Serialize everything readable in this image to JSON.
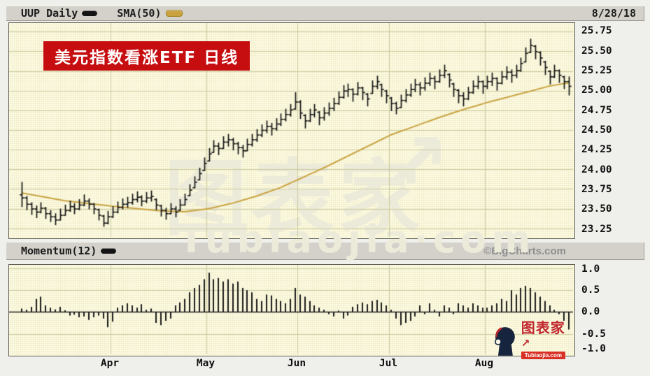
{
  "header": {
    "symbol_label": "UUP Daily",
    "sma_label": "SMA(50)",
    "date": "8/28/18"
  },
  "momentum_header": {
    "label": "Momentum(12)",
    "copyright": "©BigCharts.com"
  },
  "overlay": {
    "banner_text": "美元指数看涨ETF  日线",
    "watermark_cjk": "图表家",
    "watermark_arrow": "↗",
    "watermark_latin": "Tubiaojia·com",
    "logo_title": "图表家",
    "logo_arrow": "↗",
    "logo_sub": "Tubiaojia.com"
  },
  "colors": {
    "grid": "#c9c99a",
    "bar": "#141414",
    "sma": "#c9a23f",
    "zero_line": "#1a1a1a",
    "panel_bg": "#fdfbe2"
  },
  "chart_data": [
    {
      "type": "ohlc_bar",
      "title": "UUP Daily with SMA(50)",
      "ylim": [
        23.14,
        25.86
      ],
      "ytick_labels": [
        "25.75",
        "25.50",
        "25.25",
        "25.00",
        "24.75",
        "24.50",
        "24.25",
        "24.00",
        "23.75",
        "23.50",
        "23.25"
      ],
      "ytick_values": [
        25.75,
        25.5,
        25.25,
        25.0,
        24.75,
        24.5,
        24.25,
        24.0,
        23.75,
        23.5,
        23.25
      ],
      "month_labels": [
        "Apr",
        "May",
        "Jun",
        "Jul",
        "Aug"
      ],
      "month_boundaries": [
        19,
        39,
        58,
        77,
        97
      ],
      "bars": [
        [
          23.84,
          23.52,
          23.64
        ],
        [
          23.66,
          23.48,
          23.56
        ],
        [
          23.58,
          23.42,
          23.5
        ],
        [
          23.54,
          23.38,
          23.46
        ],
        [
          23.58,
          23.44,
          23.51
        ],
        [
          23.52,
          23.37,
          23.44
        ],
        [
          23.48,
          23.33,
          23.4
        ],
        [
          23.44,
          23.29,
          23.36
        ],
        [
          23.5,
          23.35,
          23.42
        ],
        [
          23.55,
          23.41,
          23.48
        ],
        [
          23.6,
          23.46,
          23.53
        ],
        [
          23.57,
          23.43,
          23.5
        ],
        [
          23.62,
          23.48,
          23.55
        ],
        [
          23.68,
          23.53,
          23.6
        ],
        [
          23.63,
          23.49,
          23.56
        ],
        [
          23.57,
          23.43,
          23.5
        ],
        [
          23.5,
          23.35,
          23.42
        ],
        [
          23.42,
          23.27,
          23.32
        ],
        [
          23.47,
          23.3,
          23.4
        ],
        [
          23.53,
          23.38,
          23.46
        ],
        [
          23.59,
          23.44,
          23.52
        ],
        [
          23.63,
          23.49,
          23.56
        ],
        [
          23.65,
          23.51,
          23.58
        ],
        [
          23.69,
          23.55,
          23.62
        ],
        [
          23.72,
          23.58,
          23.65
        ],
        [
          23.67,
          23.53,
          23.6
        ],
        [
          23.71,
          23.57,
          23.64
        ],
        [
          23.73,
          23.59,
          23.66
        ],
        [
          23.63,
          23.48,
          23.55
        ],
        [
          23.55,
          23.4,
          23.48
        ],
        [
          23.51,
          23.36,
          23.44
        ],
        [
          23.57,
          23.43,
          23.5
        ],
        [
          23.53,
          23.39,
          23.46
        ],
        [
          23.62,
          23.47,
          23.55
        ],
        [
          23.69,
          23.54,
          23.62
        ],
        [
          23.81,
          23.66,
          23.74
        ],
        [
          23.91,
          23.76,
          23.84
        ],
        [
          24.02,
          23.86,
          23.95
        ],
        [
          24.15,
          23.98,
          24.08
        ],
        [
          24.27,
          24.1,
          24.2
        ],
        [
          24.37,
          24.21,
          24.3
        ],
        [
          24.34,
          24.18,
          24.27
        ],
        [
          24.42,
          24.26,
          24.35
        ],
        [
          24.45,
          24.29,
          24.38
        ],
        [
          24.4,
          24.24,
          24.33
        ],
        [
          24.35,
          24.19,
          24.28
        ],
        [
          24.31,
          24.15,
          24.24
        ],
        [
          24.39,
          24.23,
          24.32
        ],
        [
          24.45,
          24.29,
          24.38
        ],
        [
          24.51,
          24.35,
          24.44
        ],
        [
          24.57,
          24.41,
          24.5
        ],
        [
          24.62,
          24.46,
          24.55
        ],
        [
          24.59,
          24.43,
          24.52
        ],
        [
          24.65,
          24.49,
          24.58
        ],
        [
          24.71,
          24.55,
          24.64
        ],
        [
          24.77,
          24.61,
          24.7
        ],
        [
          24.83,
          24.67,
          24.76
        ],
        [
          24.98,
          24.76,
          24.86
        ],
        [
          24.88,
          24.64,
          24.72
        ],
        [
          24.7,
          24.52,
          24.62
        ],
        [
          24.77,
          24.6,
          24.7
        ],
        [
          24.83,
          24.66,
          24.76
        ],
        [
          24.74,
          24.56,
          24.66
        ],
        [
          24.79,
          24.62,
          24.72
        ],
        [
          24.85,
          24.68,
          24.78
        ],
        [
          24.91,
          24.74,
          24.84
        ],
        [
          24.99,
          24.82,
          24.92
        ],
        [
          25.07,
          24.9,
          25.0
        ],
        [
          25.09,
          24.92,
          25.02
        ],
        [
          25.03,
          24.86,
          24.96
        ],
        [
          25.11,
          24.94,
          25.04
        ],
        [
          25.05,
          24.88,
          24.98
        ],
        [
          24.97,
          24.8,
          24.9
        ],
        [
          25.13,
          24.96,
          25.06
        ],
        [
          25.19,
          25.02,
          25.12
        ],
        [
          25.09,
          24.92,
          25.02
        ],
        [
          25.01,
          24.84,
          24.94
        ],
        [
          24.92,
          24.74,
          24.84
        ],
        [
          24.86,
          24.7,
          24.78
        ],
        [
          24.95,
          24.78,
          24.88
        ],
        [
          25.02,
          24.85,
          24.95
        ],
        [
          25.09,
          24.92,
          25.02
        ],
        [
          25.15,
          24.98,
          25.08
        ],
        [
          25.11,
          24.94,
          25.04
        ],
        [
          25.17,
          25.0,
          25.1
        ],
        [
          25.23,
          25.06,
          25.16
        ],
        [
          25.19,
          25.02,
          25.12
        ],
        [
          25.27,
          25.1,
          25.2
        ],
        [
          25.33,
          25.16,
          25.26
        ],
        [
          25.22,
          25.04,
          25.14
        ],
        [
          25.1,
          24.92,
          25.02
        ],
        [
          25.02,
          24.84,
          24.94
        ],
        [
          24.98,
          24.8,
          24.9
        ],
        [
          25.05,
          24.88,
          24.98
        ],
        [
          25.13,
          24.96,
          25.06
        ],
        [
          25.19,
          25.02,
          25.12
        ],
        [
          25.13,
          24.96,
          25.06
        ],
        [
          25.19,
          25.02,
          25.12
        ],
        [
          25.23,
          25.06,
          25.16
        ],
        [
          25.17,
          25.0,
          25.1
        ],
        [
          25.25,
          25.08,
          25.18
        ],
        [
          25.31,
          25.14,
          25.24
        ],
        [
          25.27,
          25.1,
          25.2
        ],
        [
          25.33,
          25.16,
          25.26
        ],
        [
          25.42,
          25.24,
          25.35
        ],
        [
          25.55,
          25.36,
          25.48
        ],
        [
          25.66,
          25.48,
          25.58
        ],
        [
          25.58,
          25.4,
          25.5
        ],
        [
          25.5,
          25.32,
          25.42
        ],
        [
          25.38,
          25.2,
          25.3
        ],
        [
          25.26,
          25.08,
          25.18
        ],
        [
          25.33,
          25.16,
          25.26
        ],
        [
          25.27,
          25.1,
          25.2
        ],
        [
          25.19,
          25.02,
          25.12
        ],
        [
          25.18,
          24.94,
          25.06
        ]
      ],
      "sma50_anchors": [
        [
          0,
          23.7
        ],
        [
          9,
          23.6
        ],
        [
          19,
          23.53
        ],
        [
          24,
          23.5
        ],
        [
          29,
          23.47
        ],
        [
          34,
          23.46
        ],
        [
          39,
          23.5
        ],
        [
          44,
          23.57
        ],
        [
          49,
          23.66
        ],
        [
          54,
          23.77
        ],
        [
          58,
          23.88
        ],
        [
          63,
          24.02
        ],
        [
          68,
          24.17
        ],
        [
          72,
          24.29
        ],
        [
          77,
          24.44
        ],
        [
          82,
          24.55
        ],
        [
          87,
          24.66
        ],
        [
          92,
          24.76
        ],
        [
          97,
          24.85
        ],
        [
          102,
          24.93
        ],
        [
          107,
          25.01
        ],
        [
          110,
          25.06
        ],
        [
          112,
          25.08
        ],
        [
          114,
          25.1
        ]
      ]
    },
    {
      "type": "bar",
      "title": "Momentum(12)",
      "ylim": [
        -0.97,
        1.08
      ],
      "ytick_labels": [
        "1.0",
        "0.5",
        "0.0",
        "-0.5",
        "-1.0"
      ],
      "ytick_values": [
        1.0,
        0.5,
        0.0,
        -0.5,
        -1.0
      ],
      "month_boundaries": [
        19,
        39,
        58,
        77,
        97
      ],
      "values": [
        0.08,
        0.05,
        0.12,
        0.3,
        0.35,
        0.15,
        0.1,
        0.06,
        0.12,
        0.04,
        -0.08,
        -0.06,
        -0.12,
        -0.1,
        -0.18,
        -0.12,
        -0.08,
        -0.15,
        -0.35,
        -0.22,
        0.1,
        0.15,
        0.2,
        0.15,
        0.1,
        0.18,
        0.05,
        0.08,
        -0.25,
        -0.3,
        -0.2,
        -0.15,
        0.15,
        0.22,
        0.3,
        0.45,
        0.55,
        0.62,
        0.75,
        0.9,
        0.75,
        0.78,
        0.7,
        0.75,
        0.65,
        0.7,
        0.55,
        0.5,
        0.45,
        0.3,
        0.25,
        0.4,
        0.38,
        0.3,
        0.25,
        0.2,
        0.3,
        0.55,
        0.4,
        0.35,
        0.25,
        0.15,
        0.1,
        0.05,
        -0.05,
        -0.1,
        0.03,
        -0.15,
        -0.08,
        0.12,
        0.18,
        0.22,
        0.18,
        0.25,
        0.28,
        0.22,
        0.15,
        0.05,
        -0.15,
        -0.3,
        -0.25,
        -0.2,
        -0.1,
        0.15,
        -0.05,
        0.2,
        0.05,
        -0.1,
        0.15,
        0.1,
        -0.05,
        0.2,
        0.15,
        0.1,
        0.2,
        0.15,
        0.1,
        0.1,
        0.15,
        0.2,
        0.3,
        0.25,
        0.5,
        0.4,
        0.55,
        0.6,
        0.55,
        0.45,
        0.35,
        0.25,
        0.15,
        0.05,
        -0.05,
        -0.2,
        -0.4
      ]
    }
  ]
}
